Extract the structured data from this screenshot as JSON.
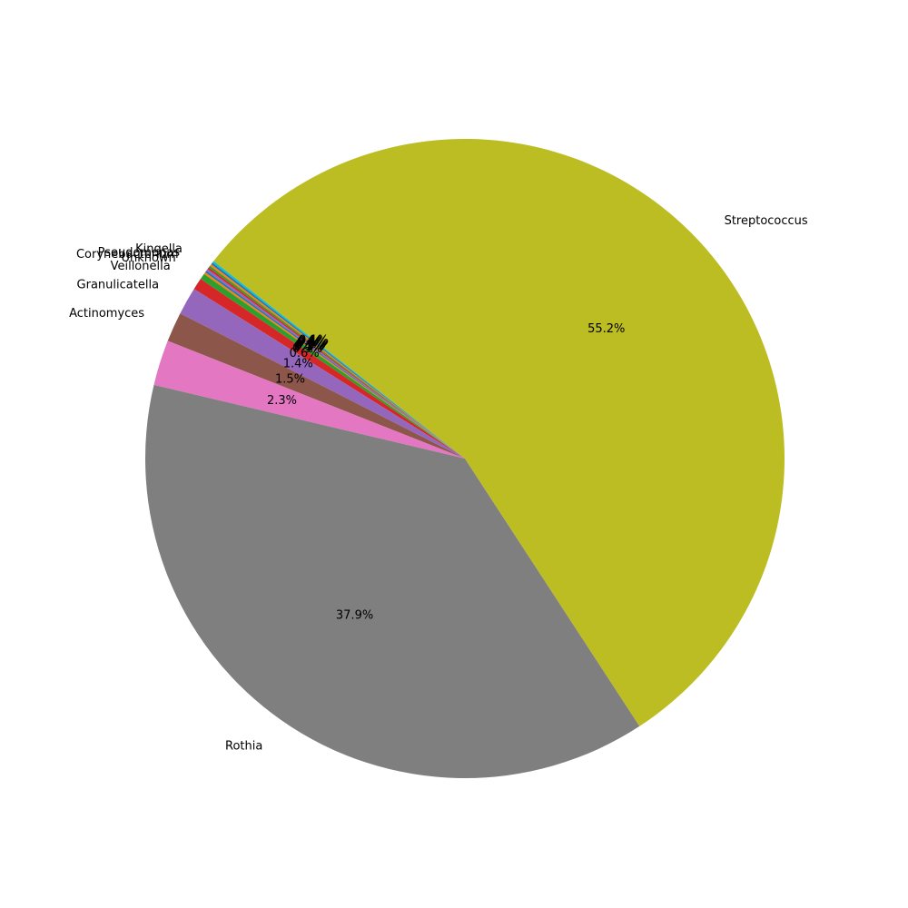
{
  "chart_data": {
    "type": "pie",
    "title": "",
    "start_angle_deg": 144,
    "direction": "counterclockwise",
    "show_pct_above": 0,
    "slices": [
      {
        "label": "Pseudomonas",
        "value": 0.1,
        "pct_text": "0.1%",
        "color": "#1f77b4"
      },
      {
        "label": "Corynebacterium",
        "value": 0.1,
        "pct_text": "0.1%",
        "color": "#ff7f0e"
      },
      {
        "label": "Unknown",
        "value": 0.3,
        "pct_text": "0.3%",
        "color": "#2ca02c"
      },
      {
        "label": "Veillonella",
        "value": 0.6,
        "pct_text": "0.6%",
        "color": "#d62728"
      },
      {
        "label": "Granulicatella",
        "value": 1.4,
        "pct_text": "1.4%",
        "color": "#9467bd"
      },
      {
        "label": "Actinomyces",
        "value": 1.5,
        "pct_text": "1.5%",
        "color": "#8c564b"
      },
      {
        "label": "",
        "value": 2.3,
        "pct_text": "2.3%",
        "color": "#e377c2"
      },
      {
        "label": "Rothia",
        "value": 37.9,
        "pct_text": "37.9%",
        "color": "#7f7f7f"
      },
      {
        "label": "Streptococcus",
        "value": 55.2,
        "pct_text": "55.2%",
        "color": "#bcbd22"
      },
      {
        "label": "",
        "value": 0.1,
        "pct_text": "0.1%",
        "color": "#17becf"
      },
      {
        "label": "",
        "value": 0.1,
        "pct_text": "0.1%",
        "color": "#1f77b4"
      },
      {
        "label": "",
        "value": 0.1,
        "pct_text": "0.1%",
        "color": "#ff7f0e"
      },
      {
        "label": "",
        "value": 0.1,
        "pct_text": "0.1%",
        "color": "#2ca02c"
      },
      {
        "label": "Kingella",
        "value": 0.1,
        "pct_text": "0.1%",
        "color": "#d62728"
      },
      {
        "label": "",
        "value": 0.1,
        "pct_text": "0.1%",
        "color": "#9467bd"
      }
    ]
  }
}
